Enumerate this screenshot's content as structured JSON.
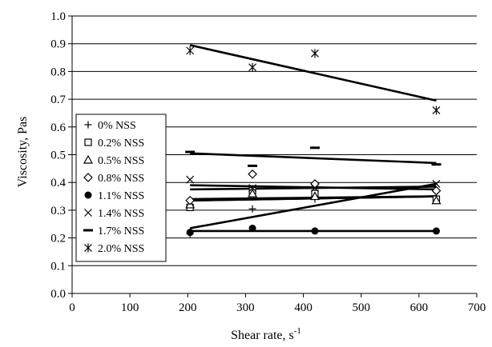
{
  "chart_data": {
    "type": "scatter",
    "title": "",
    "xlabel": "Shear rate, s",
    "xlabel_superscript": "-1",
    "ylabel": "Viscosity, Pas",
    "xlim": [
      0,
      700
    ],
    "ylim": [
      0.0,
      1.0
    ],
    "xticks": [
      0,
      100,
      200,
      300,
      400,
      500,
      600,
      700
    ],
    "yticks": [
      0.0,
      0.1,
      0.2,
      0.3,
      0.4,
      0.5,
      0.6,
      0.7,
      0.8,
      0.9,
      1.0
    ],
    "grid": "horizontal",
    "legend_position": "left",
    "series": [
      {
        "name": "0% NSS",
        "marker": "plus",
        "x": [
          204,
          312,
          420,
          630
        ],
        "y": [
          0.215,
          0.305,
          0.34,
          0.35
        ],
        "trend": [
          0.335,
          0.35
        ]
      },
      {
        "name": "0.2% NSS",
        "marker": "square",
        "x": [
          204,
          312,
          420,
          630
        ],
        "y": [
          0.31,
          0.37,
          0.36,
          0.34
        ],
        "trend": [
          0.34,
          0.35
        ]
      },
      {
        "name": "0.5% NSS",
        "marker": "triangle",
        "x": [
          204,
          312,
          420,
          630
        ],
        "y": [
          0.32,
          0.36,
          0.35,
          0.335
        ],
        "trend": [
          0.335,
          0.35
        ]
      },
      {
        "name": "0.8% NSS",
        "marker": "diamond",
        "x": [
          204,
          312,
          420,
          630
        ],
        "y": [
          0.335,
          0.43,
          0.395,
          0.37
        ],
        "trend": [
          0.375,
          0.385
        ]
      },
      {
        "name": "1.1% NSS",
        "marker": "circle",
        "x": [
          204,
          312,
          420,
          630
        ],
        "y": [
          0.22,
          0.235,
          0.225,
          0.225
        ],
        "trend": [
          0.225,
          0.225
        ]
      },
      {
        "name": "1.4% NSS",
        "marker": "x",
        "x": [
          204,
          312,
          420,
          630
        ],
        "y": [
          0.41,
          0.38,
          0.38,
          0.395
        ],
        "trend": [
          0.39,
          0.375
        ]
      },
      {
        "name": "1.7% NSS",
        "marker": "dash",
        "x": [
          204,
          312,
          420,
          630
        ],
        "y": [
          0.51,
          0.46,
          0.525,
          0.465
        ],
        "trend": [
          0.505,
          0.47
        ]
      },
      {
        "name": "2.0% NSS",
        "marker": "asterisk",
        "x": [
          204,
          312,
          420,
          630
        ],
        "y": [
          0.875,
          0.815,
          0.865,
          0.66
        ],
        "trend": [
          0.895,
          0.695
        ]
      }
    ],
    "extra_trend": {
      "from": [
        204,
        0.235
      ],
      "to": [
        630,
        0.395
      ]
    }
  }
}
